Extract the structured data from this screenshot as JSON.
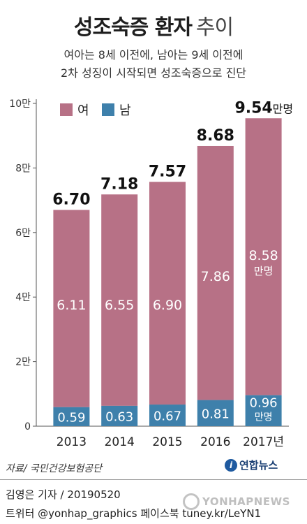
{
  "header": {
    "title_main": "성조숙증 환자",
    "title_sub": "추이",
    "subtitle_line1": "여아는 8세 이전에, 남아는 9세 이전에",
    "subtitle_line2": "2차 성징이 시작되면 성조숙증으로 진단"
  },
  "colors": {
    "female": "#b77186",
    "male": "#3e80ab",
    "axis": "#555555"
  },
  "chart_data": {
    "type": "bar",
    "stacked": true,
    "categories": [
      "2013",
      "2014",
      "2015",
      "2016",
      "2017년"
    ],
    "series": [
      {
        "name": "남",
        "values": [
          0.59,
          0.63,
          0.67,
          0.81,
          0.96
        ]
      },
      {
        "name": "여",
        "values": [
          6.11,
          6.55,
          6.9,
          7.86,
          8.58
        ]
      }
    ],
    "totals": [
      6.7,
      7.18,
      7.57,
      8.68,
      9.54
    ],
    "total_labels": [
      "6.70",
      "7.18",
      "7.57",
      "8.68",
      "9.54"
    ],
    "male_labels": [
      "0.59",
      "0.63",
      "0.67",
      "0.81",
      "0.96"
    ],
    "female_labels": [
      "6.11",
      "6.55",
      "6.90",
      "7.86",
      "8.58"
    ],
    "unit_suffix": "만명",
    "unit_short": "만명",
    "ylim": [
      0,
      10
    ],
    "yticks": [
      0,
      2,
      4,
      6,
      8,
      10
    ],
    "ytick_labels": [
      "0",
      "2만",
      "4만",
      "6만",
      "8만",
      "10만"
    ],
    "legend": {
      "position": "top-left",
      "items": [
        "여",
        "남"
      ]
    },
    "grid": false
  },
  "footer": {
    "source": "자료/ 국민건강보험공단",
    "logo_text": "연합뉴스",
    "logo_mark": "i",
    "reporter": "김영은 기자 / 20190520",
    "social": "트위터 @yonhap_graphics  페이스북 tuney.kr/LeYN1",
    "watermark": "YONHAPNEWS"
  }
}
